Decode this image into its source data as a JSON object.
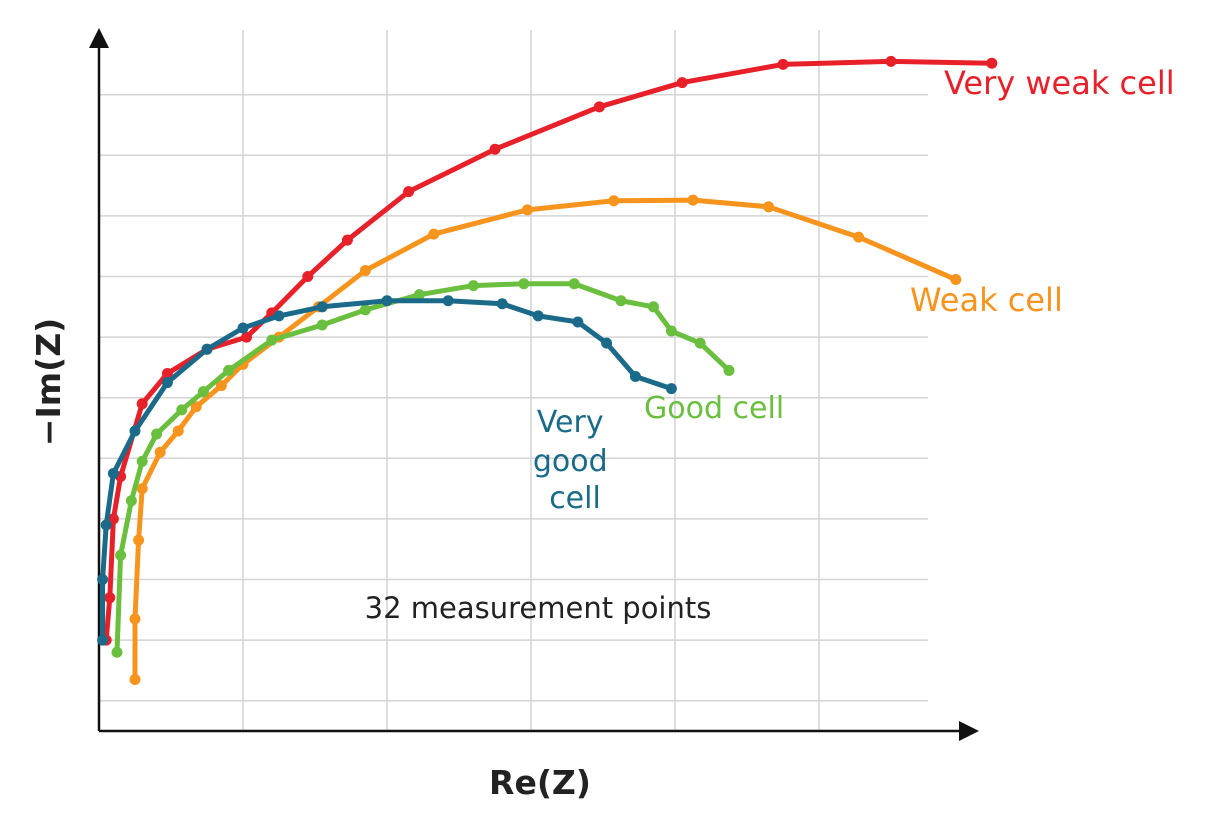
{
  "chart_data": {
    "type": "line",
    "xlabel": "Re(Z)",
    "ylabel": "−Im(Z)",
    "annotation": "32 measurement points",
    "xlim": [
      0,
      12
    ],
    "ylim": [
      0,
      11
    ],
    "grid": true,
    "series": [
      {
        "name": "Very weak cell",
        "color": "#e8202a",
        "points": [
          [
            0.1,
            1.5
          ],
          [
            0.15,
            2.2
          ],
          [
            0.2,
            3.5
          ],
          [
            0.3,
            4.2
          ],
          [
            0.6,
            5.4
          ],
          [
            0.95,
            5.9
          ],
          [
            1.5,
            6.3
          ],
          [
            2.05,
            6.5
          ],
          [
            2.4,
            6.9
          ],
          [
            2.9,
            7.5
          ],
          [
            3.45,
            8.1
          ],
          [
            4.3,
            8.9
          ],
          [
            5.5,
            9.6
          ],
          [
            6.95,
            10.3
          ],
          [
            8.1,
            10.7
          ],
          [
            9.5,
            11.0
          ],
          [
            11.0,
            11.05
          ],
          [
            12.4,
            11.02
          ]
        ]
      },
      {
        "name": "Weak cell",
        "color": "#f7941d",
        "points": [
          [
            0.5,
            0.85
          ],
          [
            0.5,
            1.85
          ],
          [
            0.55,
            3.15
          ],
          [
            0.6,
            4.0
          ],
          [
            0.85,
            4.6
          ],
          [
            1.1,
            4.95
          ],
          [
            1.35,
            5.35
          ],
          [
            1.7,
            5.7
          ],
          [
            2.0,
            6.05
          ],
          [
            2.5,
            6.5
          ],
          [
            3.05,
            7.0
          ],
          [
            3.7,
            7.6
          ],
          [
            4.65,
            8.2
          ],
          [
            5.95,
            8.6
          ],
          [
            7.15,
            8.75
          ],
          [
            8.25,
            8.76
          ],
          [
            9.3,
            8.65
          ],
          [
            10.55,
            8.15
          ],
          [
            11.9,
            7.45
          ]
        ]
      },
      {
        "name": "Good cell",
        "color": "#6abf3e",
        "points": [
          [
            0.25,
            1.3
          ],
          [
            0.3,
            2.9
          ],
          [
            0.45,
            3.8
          ],
          [
            0.6,
            4.45
          ],
          [
            0.8,
            4.9
          ],
          [
            1.15,
            5.3
          ],
          [
            1.45,
            5.6
          ],
          [
            1.8,
            5.95
          ],
          [
            2.4,
            6.45
          ],
          [
            3.1,
            6.7
          ],
          [
            3.7,
            6.95
          ],
          [
            4.45,
            7.2
          ],
          [
            5.2,
            7.35
          ],
          [
            5.9,
            7.38
          ],
          [
            6.6,
            7.38
          ],
          [
            7.25,
            7.1
          ],
          [
            7.7,
            7.0
          ],
          [
            7.95,
            6.6
          ],
          [
            8.35,
            6.4
          ],
          [
            8.75,
            5.95
          ]
        ]
      },
      {
        "name": "Very good cell",
        "color": "#1b6a8a",
        "points": [
          [
            0.05,
            1.5
          ],
          [
            0.05,
            2.5
          ],
          [
            0.1,
            3.4
          ],
          [
            0.2,
            4.25
          ],
          [
            0.5,
            4.95
          ],
          [
            0.95,
            5.75
          ],
          [
            1.5,
            6.3
          ],
          [
            2.0,
            6.65
          ],
          [
            2.5,
            6.85
          ],
          [
            3.1,
            7.0
          ],
          [
            4.0,
            7.1
          ],
          [
            4.85,
            7.1
          ],
          [
            5.6,
            7.05
          ],
          [
            6.1,
            6.85
          ],
          [
            6.65,
            6.75
          ],
          [
            7.05,
            6.4
          ],
          [
            7.45,
            5.85
          ],
          [
            7.95,
            5.65
          ]
        ]
      }
    ]
  }
}
